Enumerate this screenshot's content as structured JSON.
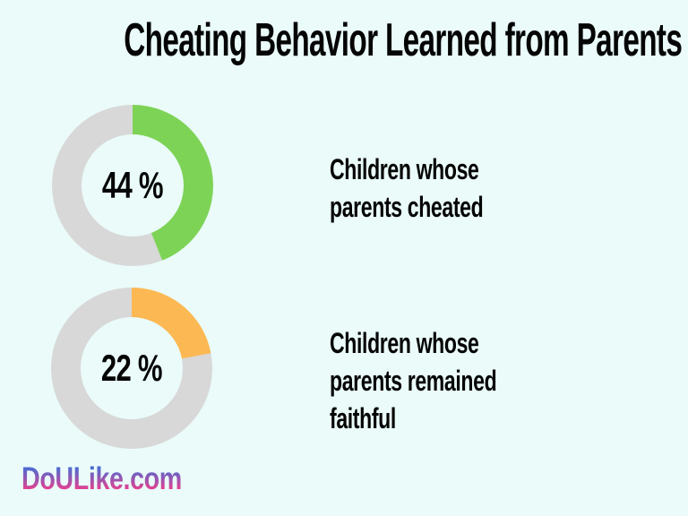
{
  "colors": {
    "background": "#eafbf9",
    "text": "#050505",
    "track_gray": "#d8d8d8",
    "green": "#7dd356",
    "orange": "#fcb853"
  },
  "branding": {
    "site_label": "DoULike.com",
    "gradient_top": "#4b6bd2",
    "gradient_bottom": "#e8418f"
  },
  "chart_data": {
    "type": "pie",
    "variant": "donut",
    "title": "Cheating Behavior Learned from Parents",
    "unit": "%",
    "direction": "clockwise",
    "start_angle_deg": 0,
    "donuts": [
      {
        "label": "Children whose parents cheated",
        "label_lines": [
          "Children whose",
          "parents cheated"
        ],
        "value": 44,
        "value_label": "44 %",
        "remainder": 56,
        "slice_color": "#7dd356",
        "track_color": "#d8d8d8"
      },
      {
        "label": "Children whose parents remained faithful",
        "label_lines": [
          "Children whose",
          "parents remained",
          "faithful"
        ],
        "value": 22,
        "value_label": "22 %",
        "remainder": 78,
        "slice_color": "#fcb853",
        "track_color": "#d8d8d8"
      }
    ]
  }
}
